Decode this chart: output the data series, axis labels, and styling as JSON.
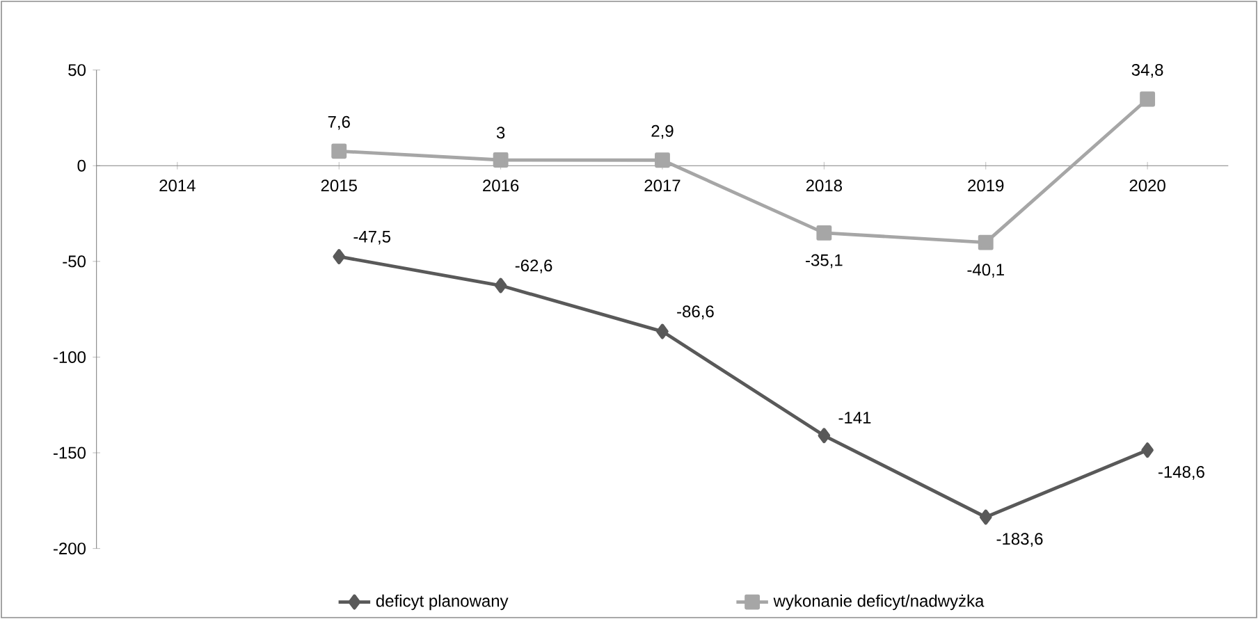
{
  "chart_data": {
    "type": "line",
    "categories": [
      "2014",
      "2015",
      "2016",
      "2017",
      "2018",
      "2019",
      "2020"
    ],
    "series": [
      {
        "name": "deficyt planowany",
        "color": "#595959",
        "marker": "diamond",
        "values": [
          null,
          -47.5,
          -62.6,
          -86.6,
          -141,
          -183.6,
          -148.6
        ],
        "value_labels": [
          null,
          "-47,5",
          "-62,6",
          "-86,6",
          "-141",
          "-183,6",
          "-148,6"
        ]
      },
      {
        "name": "wykonanie deficyt/nadwyżka",
        "color": "#a6a6a6",
        "marker": "square",
        "values": [
          null,
          7.6,
          3,
          2.9,
          -35.1,
          -40.1,
          34.8
        ],
        "value_labels": [
          null,
          "7,6",
          "3",
          "2,9",
          "-35,1",
          "-40,1",
          "34,8"
        ]
      }
    ],
    "ylim": [
      -200,
      50
    ],
    "yticks": [
      -200,
      -150,
      -100,
      -50,
      0,
      50
    ],
    "grid": false,
    "legend": "bottom"
  }
}
